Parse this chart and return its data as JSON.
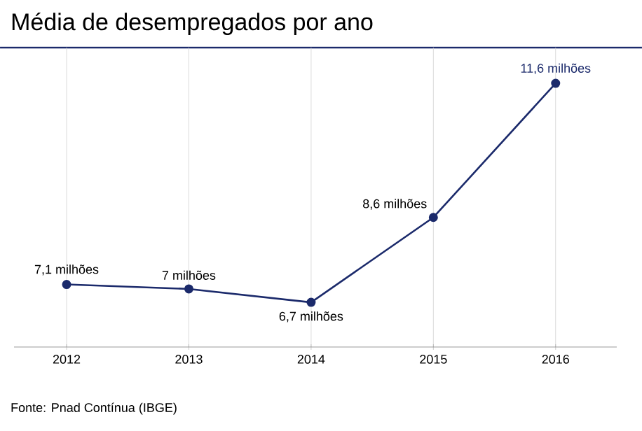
{
  "chart_data": {
    "type": "line",
    "title": "Média de desempregados por ano",
    "categories": [
      "2012",
      "2013",
      "2014",
      "2015",
      "2016"
    ],
    "series": [
      {
        "color": "#1b2a6b",
        "values": [
          7.1,
          7,
          6.7,
          8.6,
          11.6
        ],
        "value_labels": [
          "7,1 milhões",
          "7 milhões",
          "6,7 milhões",
          "8,6 milhões",
          "11,6 milhões"
        ]
      }
    ],
    "grid": "x",
    "marker": "circle",
    "line_style": "solid",
    "annotations": [
      "Fonte: Pnad Contínua (IBGE)"
    ]
  }
}
